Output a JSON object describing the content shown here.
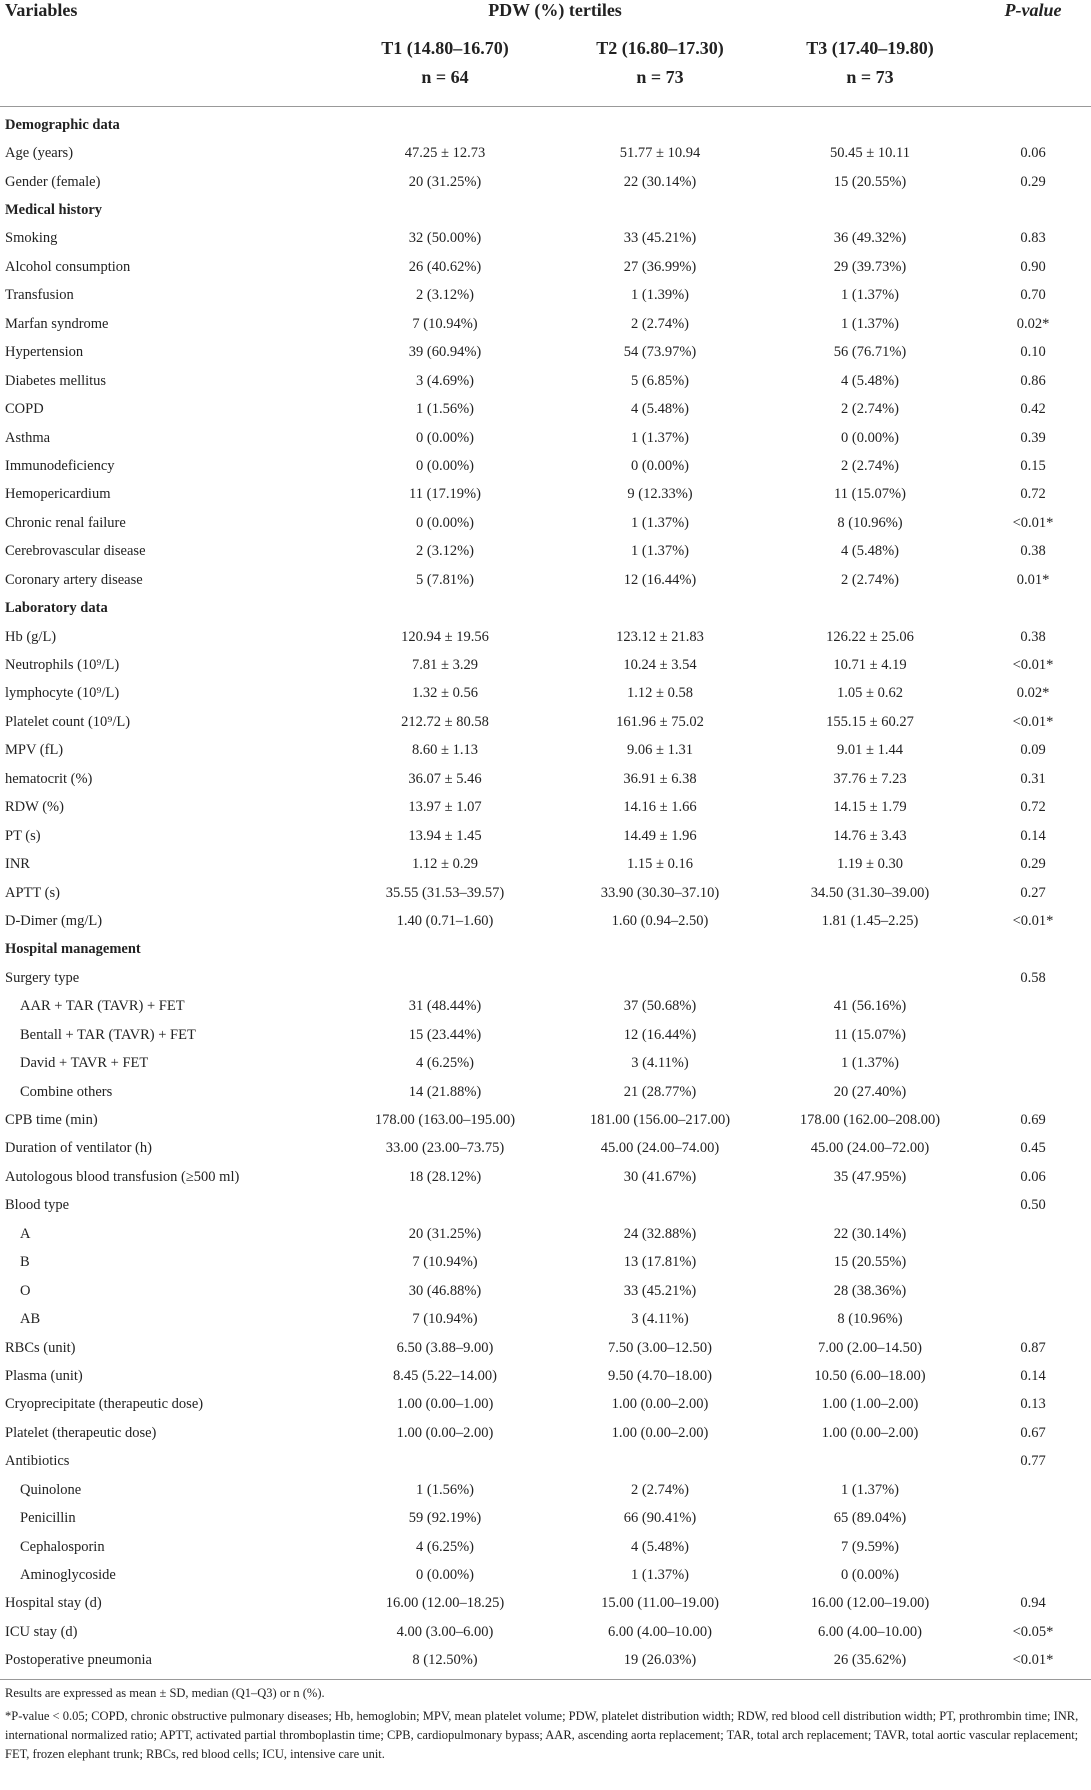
{
  "header": {
    "variables": "Variables",
    "group": "PDW (%) tertiles",
    "pvalue": "P-value",
    "columns": [
      {
        "label": "T1 (14.80–16.70)",
        "n": "n = 64"
      },
      {
        "label": "T2 (16.80–17.30)",
        "n": "n = 73"
      },
      {
        "label": "T3 (17.40–19.80)",
        "n": "n = 73"
      }
    ]
  },
  "rows": [
    {
      "section": "Demographic data"
    },
    {
      "label": "Age (years)",
      "values": [
        "47.25 ± 12.73",
        "51.77 ± 10.94",
        "50.45 ± 10.11"
      ],
      "p": "0.06"
    },
    {
      "label": "Gender (female)",
      "values": [
        "20 (31.25%)",
        "22 (30.14%)",
        "15 (20.55%)"
      ],
      "p": "0.29"
    },
    {
      "section": "Medical history"
    },
    {
      "label": "Smoking",
      "values": [
        "32 (50.00%)",
        "33 (45.21%)",
        "36 (49.32%)"
      ],
      "p": "0.83"
    },
    {
      "label": "Alcohol consumption",
      "values": [
        "26 (40.62%)",
        "27 (36.99%)",
        "29 (39.73%)"
      ],
      "p": "0.90"
    },
    {
      "label": "Transfusion",
      "values": [
        "2 (3.12%)",
        "1 (1.39%)",
        "1 (1.37%)"
      ],
      "p": "0.70"
    },
    {
      "label": "Marfan syndrome",
      "values": [
        "7 (10.94%)",
        "2 (2.74%)",
        "1 (1.37%)"
      ],
      "p": "0.02*"
    },
    {
      "label": "Hypertension",
      "values": [
        "39 (60.94%)",
        "54 (73.97%)",
        "56 (76.71%)"
      ],
      "p": "0.10"
    },
    {
      "label": "Diabetes mellitus",
      "values": [
        "3 (4.69%)",
        "5 (6.85%)",
        "4 (5.48%)"
      ],
      "p": "0.86"
    },
    {
      "label": "COPD",
      "values": [
        "1 (1.56%)",
        "4 (5.48%)",
        "2 (2.74%)"
      ],
      "p": "0.42"
    },
    {
      "label": "Asthma",
      "values": [
        "0 (0.00%)",
        "1 (1.37%)",
        "0 (0.00%)"
      ],
      "p": "0.39"
    },
    {
      "label": "Immunodeficiency",
      "values": [
        "0 (0.00%)",
        "0 (0.00%)",
        "2 (2.74%)"
      ],
      "p": "0.15"
    },
    {
      "label": "Hemopericardium",
      "values": [
        "11 (17.19%)",
        "9 (12.33%)",
        "11 (15.07%)"
      ],
      "p": "0.72"
    },
    {
      "label": "Chronic renal failure",
      "values": [
        "0 (0.00%)",
        "1 (1.37%)",
        "8 (10.96%)"
      ],
      "p": "<0.01*"
    },
    {
      "label": "Cerebrovascular disease",
      "values": [
        "2 (3.12%)",
        "1 (1.37%)",
        "4 (5.48%)"
      ],
      "p": "0.38"
    },
    {
      "label": "Coronary artery disease",
      "values": [
        "5 (7.81%)",
        "12 (16.44%)",
        "2 (2.74%)"
      ],
      "p": "0.01*"
    },
    {
      "section": "Laboratory data"
    },
    {
      "label": "Hb (g/L)",
      "values": [
        "120.94 ± 19.56",
        "123.12 ± 21.83",
        "126.22 ± 25.06"
      ],
      "p": "0.38"
    },
    {
      "label": "Neutrophils (10⁹/L)",
      "values": [
        "7.81 ± 3.29",
        "10.24 ± 3.54",
        "10.71 ± 4.19"
      ],
      "p": "<0.01*"
    },
    {
      "label": "lymphocyte (10⁹/L)",
      "values": [
        "1.32 ± 0.56",
        "1.12 ± 0.58",
        "1.05 ± 0.62"
      ],
      "p": "0.02*"
    },
    {
      "label": "Platelet count (10⁹/L)",
      "values": [
        "212.72 ± 80.58",
        "161.96 ± 75.02",
        "155.15 ± 60.27"
      ],
      "p": "<0.01*"
    },
    {
      "label": "MPV (fL)",
      "values": [
        "8.60 ± 1.13",
        "9.06 ± 1.31",
        "9.01 ± 1.44"
      ],
      "p": "0.09"
    },
    {
      "label": "hematocrit (%)",
      "values": [
        "36.07 ± 5.46",
        "36.91 ± 6.38",
        "37.76 ± 7.23"
      ],
      "p": "0.31"
    },
    {
      "label": "RDW (%)",
      "values": [
        "13.97 ± 1.07",
        "14.16 ± 1.66",
        "14.15 ± 1.79"
      ],
      "p": "0.72"
    },
    {
      "label": "PT (s)",
      "values": [
        "13.94 ± 1.45",
        "14.49 ± 1.96",
        "14.76 ± 3.43"
      ],
      "p": "0.14"
    },
    {
      "label": "INR",
      "values": [
        "1.12 ± 0.29",
        "1.15 ± 0.16",
        "1.19 ± 0.30"
      ],
      "p": "0.29"
    },
    {
      "label": "APTT (s)",
      "values": [
        "35.55 (31.53–39.57)",
        "33.90 (30.30–37.10)",
        "34.50 (31.30–39.00)"
      ],
      "p": "0.27"
    },
    {
      "label": "D-Dimer (mg/L)",
      "values": [
        "1.40 (0.71–1.60)",
        "1.60 (0.94–2.50)",
        "1.81 (1.45–2.25)"
      ],
      "p": "<0.01*"
    },
    {
      "section": "Hospital management"
    },
    {
      "label": "Surgery type",
      "p": "0.58"
    },
    {
      "label": "AAR + TAR (TAVR) + FET",
      "indent": true,
      "values": [
        "31 (48.44%)",
        "37 (50.68%)",
        "41 (56.16%)"
      ]
    },
    {
      "label": "Bentall + TAR (TAVR) + FET",
      "indent": true,
      "values": [
        "15 (23.44%)",
        "12 (16.44%)",
        "11 (15.07%)"
      ]
    },
    {
      "label": "David + TAVR + FET",
      "indent": true,
      "values": [
        "4 (6.25%)",
        "3 (4.11%)",
        "1 (1.37%)"
      ]
    },
    {
      "label": "Combine others",
      "indent": true,
      "values": [
        "14 (21.88%)",
        "21 (28.77%)",
        "20 (27.40%)"
      ]
    },
    {
      "label": "CPB time (min)",
      "values": [
        "178.00 (163.00–195.00)",
        "181.00 (156.00–217.00)",
        "178.00 (162.00–208.00)"
      ],
      "p": "0.69"
    },
    {
      "label": "Duration of ventilator (h)",
      "values": [
        "33.00 (23.00–73.75)",
        "45.00 (24.00–74.00)",
        "45.00 (24.00–72.00)"
      ],
      "p": "0.45"
    },
    {
      "label": "Autologous blood transfusion (≥500 ml)",
      "values": [
        "18 (28.12%)",
        "30 (41.67%)",
        "35 (47.95%)"
      ],
      "p": "0.06"
    },
    {
      "label": "Blood type",
      "p": "0.50"
    },
    {
      "label": "A",
      "indent": true,
      "values": [
        "20 (31.25%)",
        "24 (32.88%)",
        "22 (30.14%)"
      ]
    },
    {
      "label": "B",
      "indent": true,
      "values": [
        "7 (10.94%)",
        "13 (17.81%)",
        "15 (20.55%)"
      ]
    },
    {
      "label": "O",
      "indent": true,
      "values": [
        "30 (46.88%)",
        "33 (45.21%)",
        "28 (38.36%)"
      ]
    },
    {
      "label": "AB",
      "indent": true,
      "values": [
        "7 (10.94%)",
        "3 (4.11%)",
        "8 (10.96%)"
      ]
    },
    {
      "label": "RBCs (unit)",
      "values": [
        "6.50 (3.88–9.00)",
        "7.50 (3.00–12.50)",
        "7.00 (2.00–14.50)"
      ],
      "p": "0.87"
    },
    {
      "label": "Plasma (unit)",
      "values": [
        "8.45 (5.22–14.00)",
        "9.50 (4.70–18.00)",
        "10.50 (6.00–18.00)"
      ],
      "p": "0.14"
    },
    {
      "label": "Cryoprecipitate (therapeutic dose)",
      "values": [
        "1.00 (0.00–1.00)",
        "1.00 (0.00–2.00)",
        "1.00 (1.00–2.00)"
      ],
      "p": "0.13"
    },
    {
      "label": "Platelet (therapeutic dose)",
      "values": [
        "1.00 (0.00–2.00)",
        "1.00 (0.00–2.00)",
        "1.00 (0.00–2.00)"
      ],
      "p": "0.67"
    },
    {
      "label": "Antibiotics",
      "p": "0.77"
    },
    {
      "label": "Quinolone",
      "indent": true,
      "values": [
        "1 (1.56%)",
        "2 (2.74%)",
        "1 (1.37%)"
      ]
    },
    {
      "label": "Penicillin",
      "indent": true,
      "values": [
        "59 (92.19%)",
        "66 (90.41%)",
        "65 (89.04%)"
      ]
    },
    {
      "label": "Cephalosporin",
      "indent": true,
      "values": [
        "4 (6.25%)",
        "4 (5.48%)",
        "7 (9.59%)"
      ]
    },
    {
      "label": "Aminoglycoside",
      "indent": true,
      "values": [
        "0 (0.00%)",
        "1 (1.37%)",
        "0 (0.00%)"
      ]
    },
    {
      "label": "Hospital stay (d)",
      "values": [
        "16.00 (12.00–18.25)",
        "15.00 (11.00–19.00)",
        "16.00 (12.00–19.00)"
      ],
      "p": "0.94"
    },
    {
      "label": "ICU stay (d)",
      "values": [
        "4.00 (3.00–6.00)",
        "6.00 (4.00–10.00)",
        "6.00 (4.00–10.00)"
      ],
      "p": "<0.05*"
    },
    {
      "label": "Postoperative pneumonia",
      "values": [
        "8 (12.50%)",
        "19 (26.03%)",
        "26 (35.62%)"
      ],
      "p": "<0.01*"
    }
  ],
  "notes": [
    "Results are expressed as mean ± SD, median (Q1–Q3) or n (%).",
    "*P-value < 0.05; COPD, chronic obstructive pulmonary diseases; Hb, hemoglobin; MPV, mean platelet volume; PDW, platelet distribution width; RDW, red blood cell distribution width; PT, prothrombin time; INR, international normalized ratio; APTT, activated partial thromboplastin time; CPB, cardiopulmonary bypass; AAR, ascending aorta replacement; TAR, total arch replacement; TAVR, total aortic vascular replacement; FET, frozen elephant trunk; RBCs, red blood cells; ICU, intensive care unit."
  ]
}
